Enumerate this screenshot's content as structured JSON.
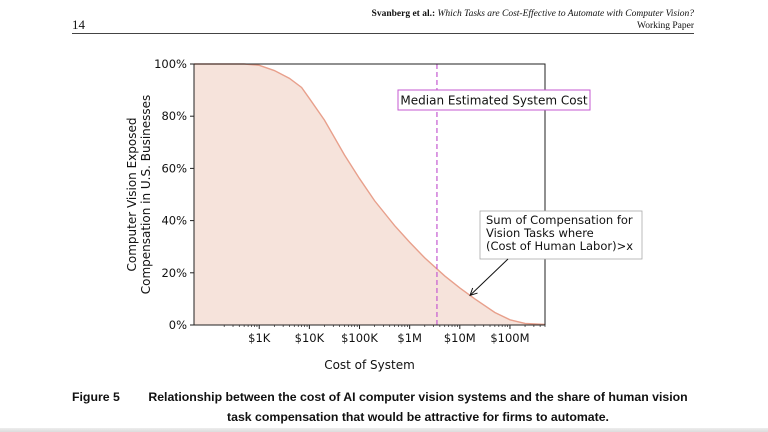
{
  "header": {
    "page_number": "14",
    "authors": "Svanberg et al.:",
    "paper_title": "Which Tasks are Cost-Effective to Automate with Computer Vision?",
    "paper_status": "Working Paper"
  },
  "figure": {
    "label": "Figure 5",
    "caption": "Relationship between the cost of AI computer vision systems and the share of human vision task compensation that would be attractive for firms to automate."
  },
  "chart_data": {
    "type": "area",
    "xlabel": "Cost of System",
    "ylabel_lines": [
      "Computer Vision Exposed",
      "Compensation in U.S. Businesses"
    ],
    "x_scale": "log",
    "x_ticks": [
      {
        "value": 1000,
        "label": "$1K"
      },
      {
        "value": 10000,
        "label": "$10K"
      },
      {
        "value": 100000,
        "label": "$100K"
      },
      {
        "value": 1000000,
        "label": "$1M"
      },
      {
        "value": 10000000,
        "label": "$10M"
      },
      {
        "value": 100000000,
        "label": "$100M"
      }
    ],
    "y_ticks": [
      {
        "value": 0,
        "label": "0%"
      },
      {
        "value": 20,
        "label": "20%"
      },
      {
        "value": 40,
        "label": "40%"
      },
      {
        "value": 60,
        "label": "60%"
      },
      {
        "value": 80,
        "label": "80%"
      },
      {
        "value": 100,
        "label": "100%"
      }
    ],
    "xlim": [
      50,
      500000000
    ],
    "ylim": [
      0,
      100
    ],
    "grid": false,
    "series": [
      {
        "x": [
          50,
          200,
          500,
          1000,
          2000,
          4000,
          7000,
          10000,
          20000,
          50000,
          100000,
          200000,
          500000,
          1000000,
          2000000,
          5000000,
          10000000,
          20000000,
          50000000,
          100000000,
          200000000,
          500000000
        ],
        "y": [
          100,
          100,
          100,
          99.5,
          97.5,
          94.5,
          91,
          86.8,
          78.5,
          65.2,
          56.1,
          47.6,
          38.1,
          31.7,
          25.7,
          18.8,
          14.2,
          10.0,
          4.8,
          2.0,
          0.6,
          0.2
        ],
        "color": "#e8a08c",
        "fill": "#f6e3db"
      }
    ],
    "median_line": {
      "x": 3500000,
      "color": "#c45ad0",
      "style": "dashed"
    },
    "annotations": [
      {
        "text": "Median Estimated System Cost",
        "box_color": "#c45ad0"
      },
      {
        "text_lines": [
          "Sum of Compensation for",
          "Vision Tasks where",
          "(Cost of Human Labor)>x"
        ],
        "arrow_to_x": 16000000,
        "box_color": "#aaaaaa"
      }
    ]
  }
}
